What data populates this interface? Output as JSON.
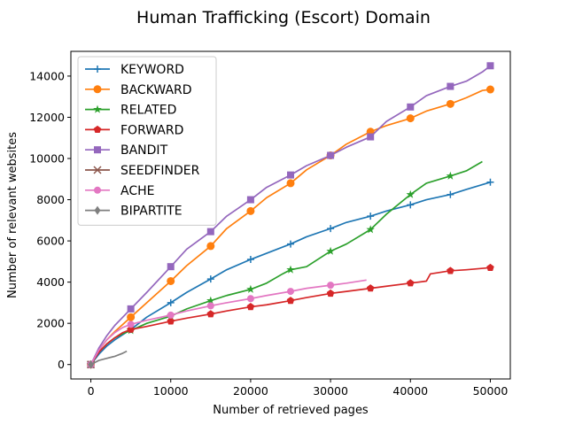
{
  "chart_data": {
    "type": "line",
    "title": "Human Trafficking (Escort) Domain",
    "xlabel": "Number of retrieved pages",
    "ylabel": "Number of relevant websites",
    "xlim": [
      -2500,
      52500
    ],
    "ylim": [
      -700,
      15200
    ],
    "xticks": [
      0,
      10000,
      20000,
      30000,
      40000,
      50000
    ],
    "yticks": [
      0,
      2000,
      4000,
      6000,
      8000,
      10000,
      12000,
      14000
    ],
    "grid": false,
    "legend_position": "top-left",
    "series": [
      {
        "name": "KEYWORD",
        "color": "#1f77b4",
        "marker": "plus",
        "x": [
          0,
          1000,
          2000,
          3000,
          4000,
          5000,
          7000,
          10000,
          12000,
          15000,
          17000,
          20000,
          22000,
          25000,
          27000,
          30000,
          32000,
          35000,
          37000,
          40000,
          42000,
          45000,
          47000,
          50000
        ],
        "y": [
          0,
          500,
          900,
          1200,
          1450,
          1700,
          2300,
          3000,
          3500,
          4150,
          4600,
          5100,
          5400,
          5850,
          6200,
          6600,
          6900,
          7200,
          7450,
          7750,
          8000,
          8250,
          8500,
          8850
        ]
      },
      {
        "name": "BACKWARD",
        "color": "#ff7f0e",
        "marker": "circle",
        "x": [
          0,
          1000,
          2000,
          3000,
          4000,
          5000,
          7000,
          10000,
          12000,
          15000,
          17000,
          20000,
          22000,
          25000,
          27000,
          30000,
          32000,
          35000,
          37000,
          40000,
          42000,
          45000,
          47000,
          49000,
          50000
        ],
        "y": [
          0,
          700,
          1200,
          1600,
          1950,
          2300,
          3000,
          4050,
          4800,
          5750,
          6600,
          7450,
          8100,
          8800,
          9450,
          10150,
          10700,
          11300,
          11600,
          11950,
          12300,
          12650,
          12950,
          13300,
          13350
        ]
      },
      {
        "name": "RELATED",
        "color": "#2ca02c",
        "marker": "star",
        "x": [
          0,
          1000,
          2000,
          3000,
          4000,
          5000,
          7000,
          10000,
          12000,
          15000,
          17000,
          20000,
          22000,
          24000,
          25000,
          27000,
          30000,
          32000,
          35000,
          37000,
          40000,
          42000,
          45000,
          47000,
          49000
        ],
        "y": [
          0,
          600,
          1000,
          1300,
          1500,
          1650,
          2000,
          2350,
          2700,
          3100,
          3350,
          3650,
          3950,
          4400,
          4600,
          4750,
          5500,
          5850,
          6550,
          7300,
          8250,
          8800,
          9150,
          9400,
          9850
        ]
      },
      {
        "name": "FORWARD",
        "color": "#d62728",
        "marker": "pentagon",
        "x": [
          0,
          1000,
          2000,
          3000,
          4000,
          5000,
          7000,
          10000,
          12000,
          15000,
          17000,
          20000,
          22000,
          25000,
          27000,
          30000,
          32000,
          35000,
          37000,
          40000,
          42000,
          42500,
          45000,
          47000,
          50000
        ],
        "y": [
          0,
          600,
          1000,
          1300,
          1550,
          1700,
          1850,
          2100,
          2250,
          2450,
          2600,
          2800,
          2900,
          3100,
          3250,
          3450,
          3550,
          3700,
          3800,
          3950,
          4050,
          4400,
          4550,
          4600,
          4700
        ]
      },
      {
        "name": "BANDIT",
        "color": "#9467bd",
        "marker": "square",
        "x": [
          0,
          1000,
          2000,
          3000,
          4000,
          5000,
          7000,
          10000,
          12000,
          15000,
          17000,
          20000,
          22000,
          25000,
          27000,
          30000,
          32000,
          35000,
          37000,
          40000,
          42000,
          45000,
          47000,
          49000,
          50000
        ],
        "y": [
          0,
          800,
          1400,
          1900,
          2300,
          2700,
          3500,
          4750,
          5600,
          6450,
          7200,
          8000,
          8600,
          9200,
          9650,
          10150,
          10550,
          11050,
          11800,
          12500,
          13050,
          13500,
          13750,
          14200,
          14500
        ]
      },
      {
        "name": "SEEDFINDER",
        "color": "#8c564b",
        "marker": "x",
        "x": [
          0
        ],
        "y": [
          0
        ]
      },
      {
        "name": "ACHE",
        "color": "#e377c2",
        "marker": "hexagon",
        "x": [
          0,
          1000,
          2000,
          3000,
          4000,
          5000,
          7000,
          10000,
          12000,
          15000,
          17000,
          20000,
          22000,
          25000,
          27000,
          30000,
          32000,
          34500
        ],
        "y": [
          0,
          700,
          1200,
          1550,
          1800,
          1950,
          2150,
          2400,
          2600,
          2850,
          3000,
          3200,
          3350,
          3550,
          3700,
          3850,
          3950,
          4100
        ]
      },
      {
        "name": "BIPARTITE",
        "color": "#7f7f7f",
        "marker": "diamond",
        "x": [
          0,
          1000,
          2000,
          3000,
          4000,
          4500
        ],
        "y": [
          0,
          200,
          300,
          400,
          550,
          650
        ]
      }
    ]
  }
}
